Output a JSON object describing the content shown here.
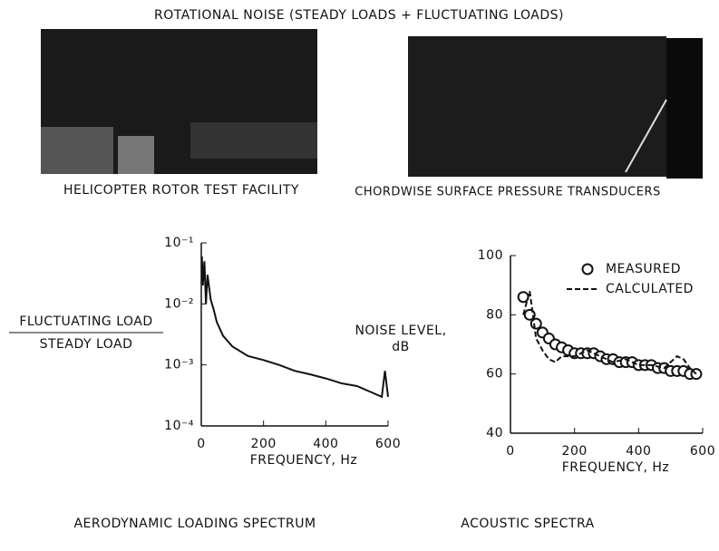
{
  "header": {
    "title": "ROTATIONAL NOISE (STEADY LOADS + FLUCTUATING LOADS)"
  },
  "photos": [
    {
      "caption": "HELICOPTER ROTOR TEST FACILITY"
    },
    {
      "caption": "CHORDWISE SURFACE PRESSURE TRANSDUCERS"
    }
  ],
  "chart_data": [
    {
      "type": "line",
      "title": "AERODYNAMIC LOADING SPECTRUM",
      "x_label": "FREQUENCY, Hz",
      "y_label": [
        "FLUCTUATING LOAD",
        "STEADY LOAD"
      ],
      "log_y": true,
      "color": "#111111",
      "x": [
        2,
        5,
        10,
        15,
        20,
        30,
        40,
        50,
        70,
        100,
        150,
        200,
        250,
        300,
        350,
        400,
        450,
        500,
        550,
        580,
        590,
        600
      ],
      "values": [
        0.06,
        0.02,
        0.05,
        0.01,
        0.03,
        0.012,
        0.008,
        0.005,
        0.003,
        0.002,
        0.0014,
        0.0012,
        0.001,
        0.0008,
        0.0007,
        0.0006,
        0.0005,
        0.00045,
        0.00035,
        0.0003,
        0.0008,
        0.0003
      ],
      "xlim": [
        0,
        600
      ],
      "xticks": [
        0,
        200,
        400,
        600
      ],
      "ylim": [
        0.0001,
        0.1
      ],
      "yticks": [
        {
          "value": 0.1,
          "label": "10⁻¹"
        },
        {
          "value": 0.01,
          "label": "10⁻²"
        },
        {
          "value": 0.001,
          "label": "10⁻³"
        },
        {
          "value": 0.0001,
          "label": "10⁻⁴"
        }
      ]
    },
    {
      "type": "line",
      "title": "ACOUSTIC SPECTRA",
      "x_label": "FREQUENCY, Hz",
      "y_label": [
        "NOISE LEVEL,",
        "dB"
      ],
      "log_y": false,
      "series": [
        {
          "name": "MEASURED",
          "color": "#111111",
          "marker": "circle",
          "x": [
            40,
            60,
            80,
            100,
            120,
            140,
            160,
            180,
            200,
            220,
            240,
            260,
            280,
            300,
            320,
            340,
            360,
            380,
            400,
            420,
            440,
            460,
            480,
            500,
            520,
            540,
            560,
            580
          ],
          "values": [
            86,
            80,
            77,
            74,
            72,
            70,
            69,
            68,
            67,
            67,
            67,
            67,
            66,
            65,
            65,
            64,
            64,
            64,
            63,
            63,
            63,
            62,
            62,
            61,
            61,
            61,
            60,
            60
          ]
        },
        {
          "name": "CALCULATED",
          "color": "#111111",
          "marker": "dashed",
          "x": [
            40,
            60,
            80,
            100,
            120,
            140,
            160,
            200,
            240,
            280,
            320,
            360,
            400,
            440,
            480,
            500,
            520,
            540,
            560,
            580
          ],
          "values": [
            80,
            88,
            72,
            68,
            65,
            64,
            66,
            66,
            68,
            66,
            64,
            65,
            63,
            63,
            62,
            64,
            66,
            65,
            62,
            60
          ]
        }
      ],
      "xlim": [
        0,
        600
      ],
      "xticks": [
        0,
        200,
        400,
        600
      ],
      "ylim": [
        40,
        100
      ],
      "yticks": [
        40,
        60,
        80,
        100
      ]
    }
  ]
}
